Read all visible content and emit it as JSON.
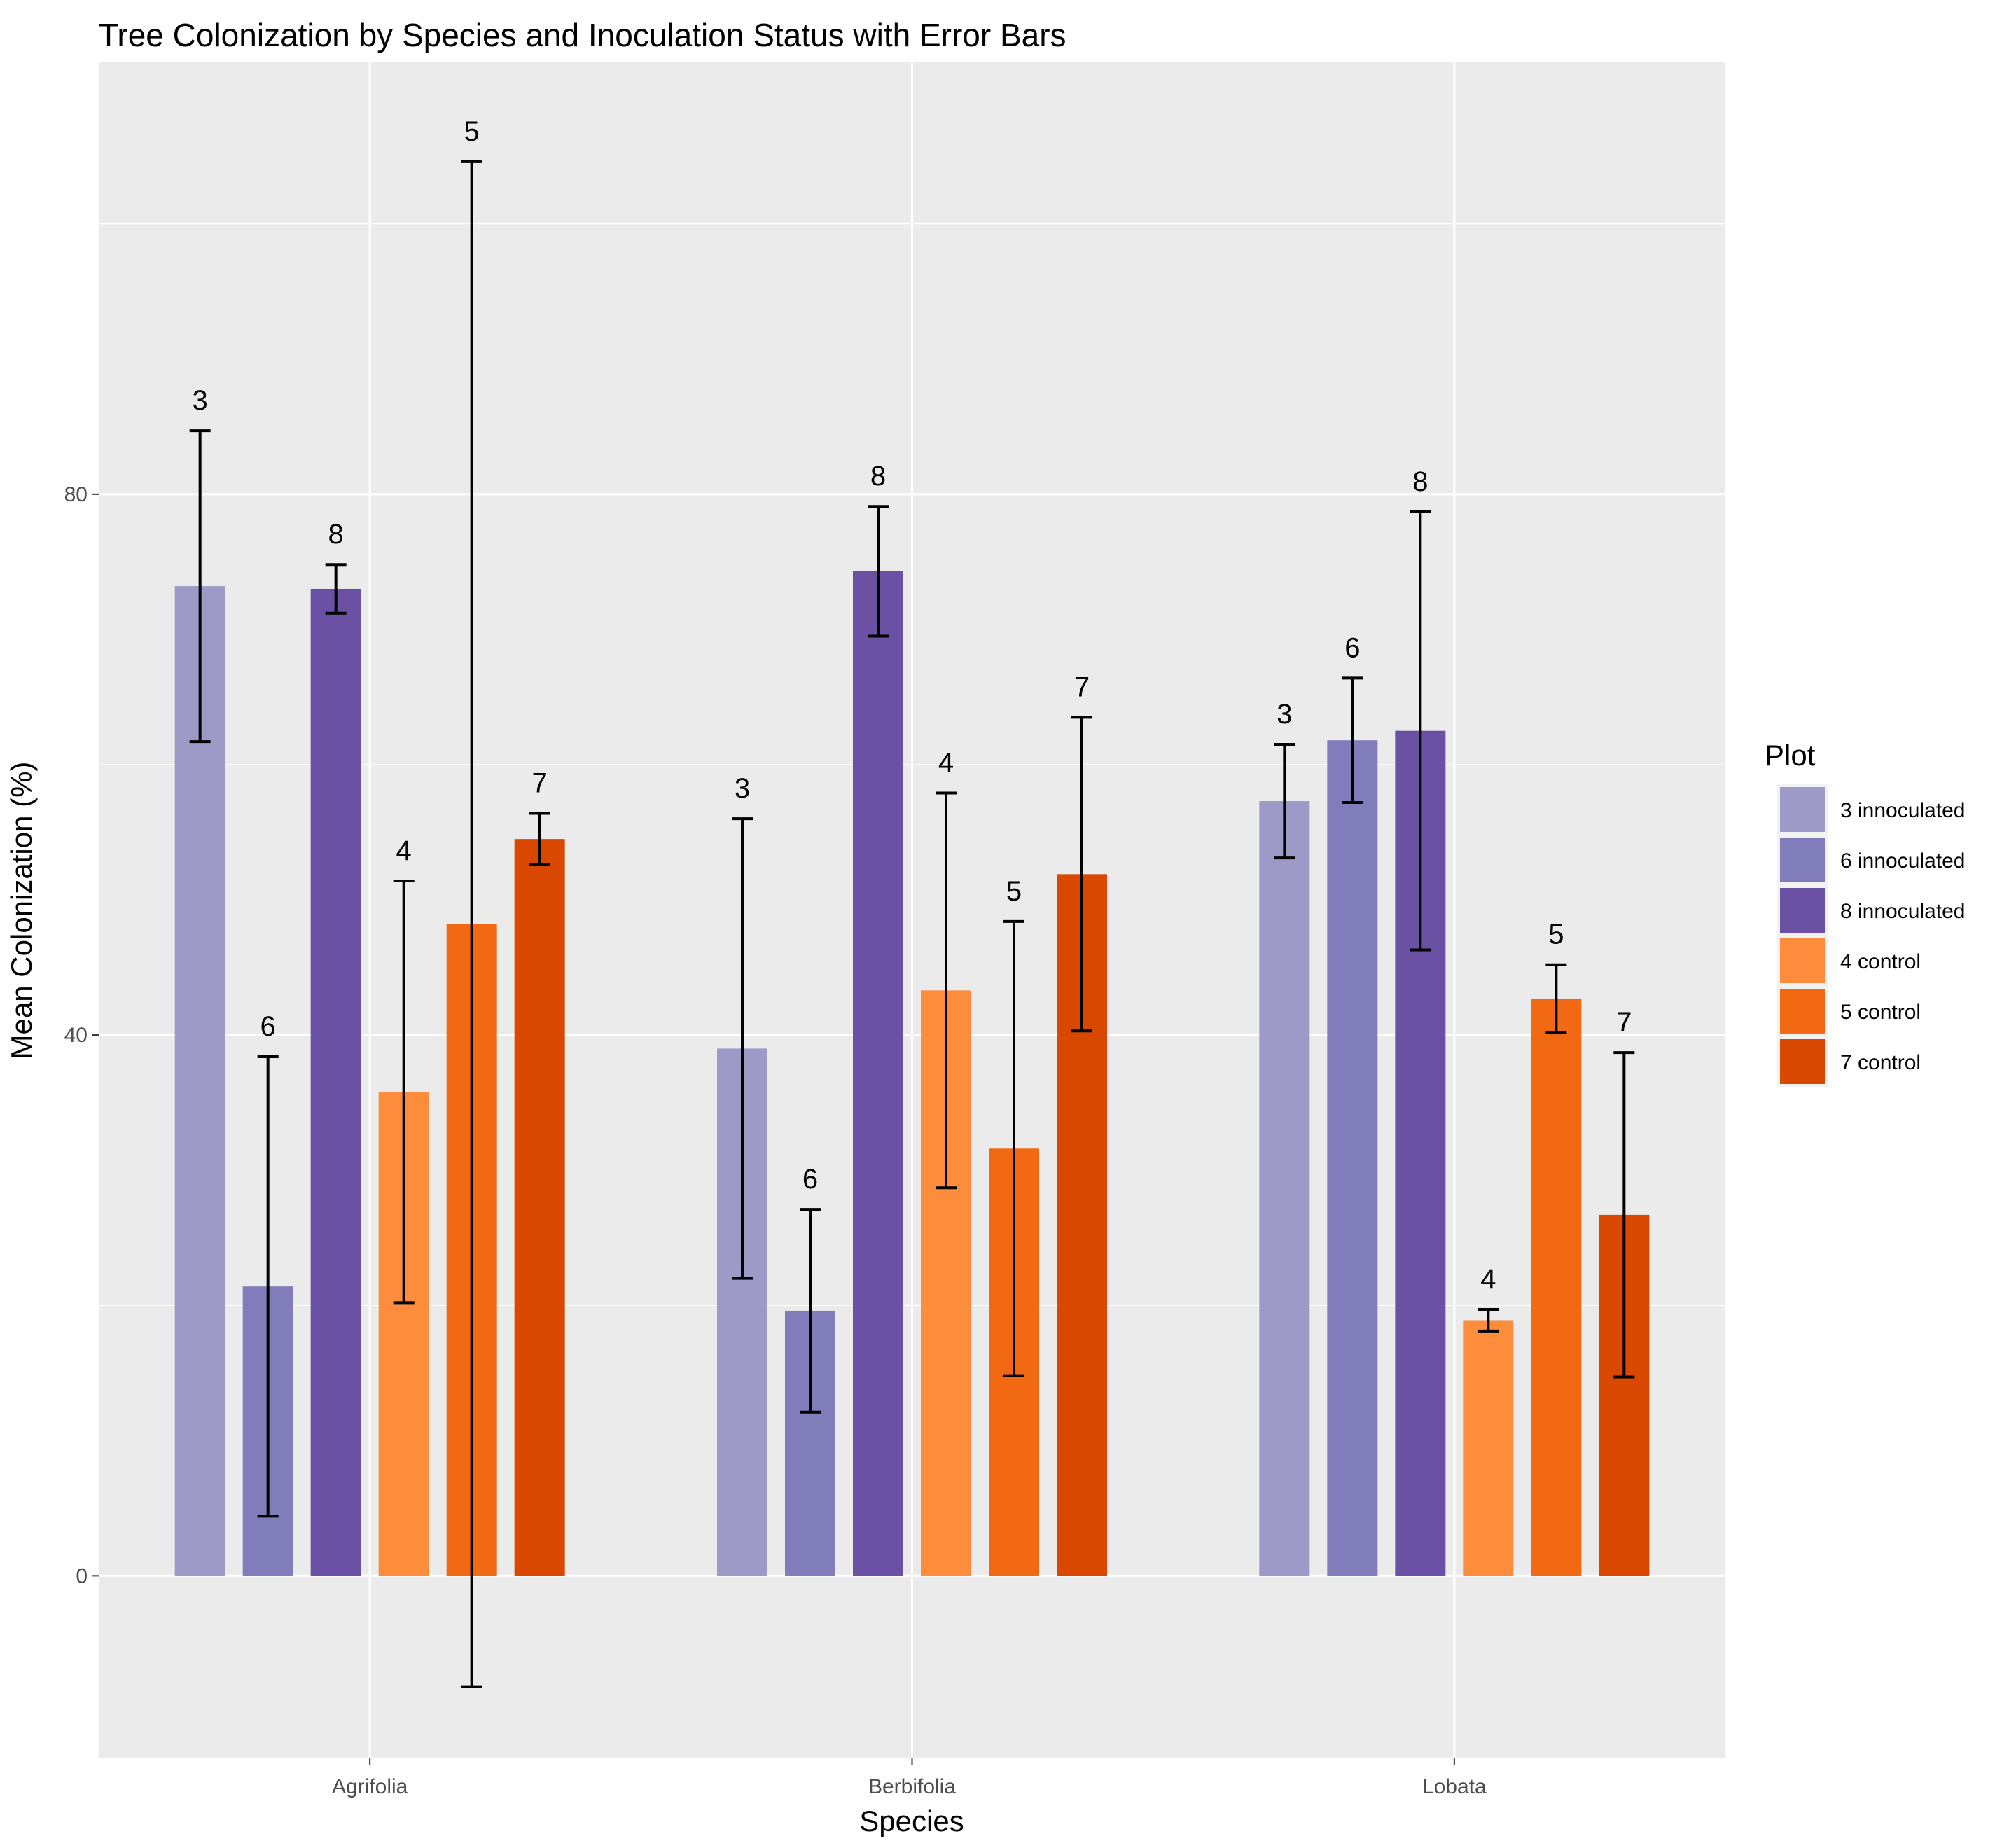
{
  "chart_data": {
    "type": "bar",
    "title": "Tree Colonization by Species and Inoculation Status with Error Bars",
    "xlabel": "Species",
    "ylabel": "Mean Colonization (%)",
    "ylim": [
      -13.5,
      112
    ],
    "yticks": [
      0,
      40,
      80
    ],
    "grid": true,
    "legend": {
      "title": "Plot",
      "position": "right"
    },
    "categories": [
      "Agrifolia",
      "Berbifolia",
      "Lobata"
    ],
    "series": [
      {
        "name": "3 innoculated",
        "label": "3",
        "color": "#9e9ac8",
        "values": [
          73.2,
          39.0,
          57.3
        ],
        "errors": [
          11.5,
          17.0,
          4.2
        ]
      },
      {
        "name": "6 innoculated",
        "label": "6",
        "color": "#807dba",
        "values": [
          21.4,
          19.6,
          61.8
        ],
        "errors": [
          17.0,
          7.5,
          4.6
        ]
      },
      {
        "name": "8 innoculated",
        "label": "8",
        "color": "#6a51a3",
        "values": [
          73.0,
          74.3,
          62.5
        ],
        "errors": [
          1.8,
          4.8,
          16.2
        ]
      },
      {
        "name": "4 control",
        "label": "4",
        "color": "#fd8d3c",
        "values": [
          35.8,
          43.3,
          18.9
        ],
        "errors": [
          15.6,
          14.6,
          0.8
        ]
      },
      {
        "name": "5 control",
        "label": "5",
        "color": "#f16913",
        "values": [
          48.2,
          31.6,
          42.7
        ],
        "errors": [
          56.4,
          16.8,
          2.5
        ]
      },
      {
        "name": "7 control",
        "label": "7",
        "color": "#d94801",
        "values": [
          54.5,
          51.9,
          26.7
        ],
        "errors": [
          1.9,
          11.6,
          12.0
        ]
      }
    ]
  }
}
